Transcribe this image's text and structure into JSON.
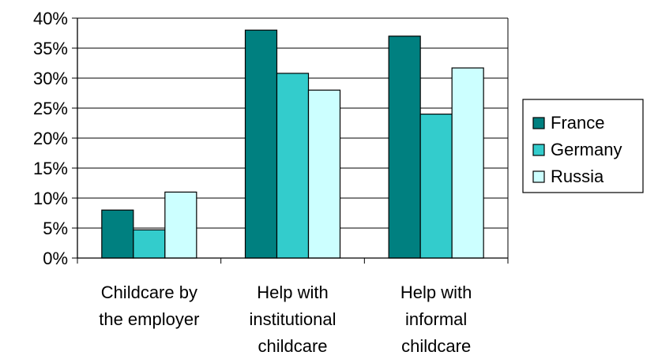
{
  "chart_data": {
    "type": "bar",
    "categories": [
      [
        "Childcare by",
        "the employer"
      ],
      [
        "Help with",
        "institutional",
        "childcare"
      ],
      [
        "Help with",
        "informal",
        "childcare"
      ]
    ],
    "series": [
      {
        "name": "France",
        "color": "#008080",
        "values": [
          8,
          38,
          37
        ]
      },
      {
        "name": "Germany",
        "color": "#33CCCC",
        "values": [
          4.7,
          30.8,
          24
        ]
      },
      {
        "name": "Russia",
        "color": "#CCFFFF",
        "values": [
          11,
          28,
          31.7
        ]
      }
    ],
    "y_ticks": [
      "0%",
      "5%",
      "10%",
      "15%",
      "20%",
      "25%",
      "30%",
      "35%",
      "40%"
    ],
    "ylim": [
      0,
      40
    ],
    "y_step": 5,
    "grid": true,
    "legend_position": "right"
  }
}
